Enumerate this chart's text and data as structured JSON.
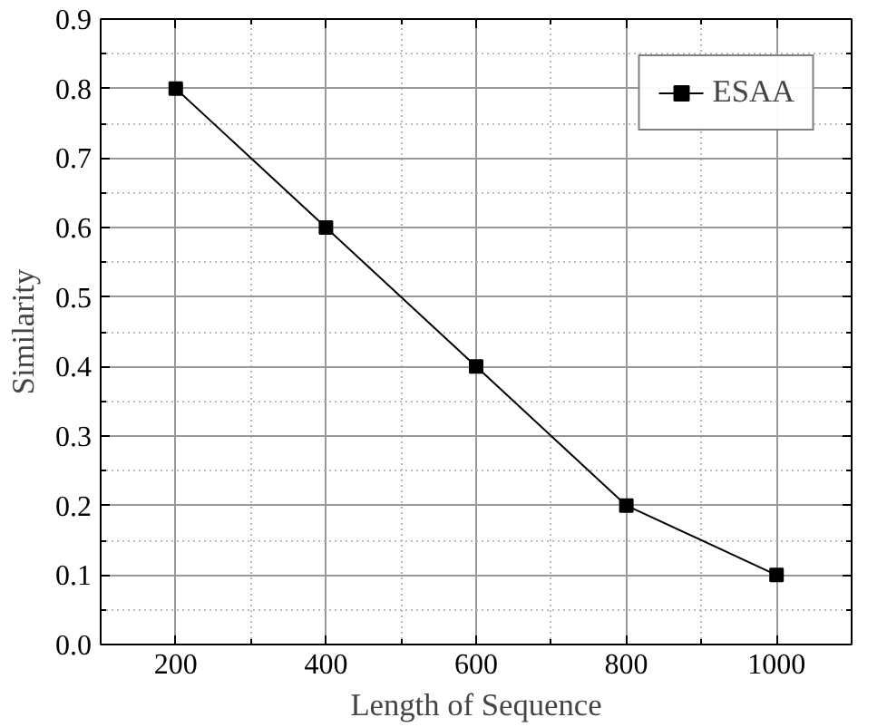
{
  "chart_data": {
    "type": "line",
    "xlabel": "Length of Sequence",
    "ylabel": "Similarity",
    "x": [
      200,
      400,
      600,
      800,
      1000
    ],
    "series": [
      {
        "name": "ESAA",
        "color": "#000000",
        "values": [
          0.8,
          0.6,
          0.4,
          0.2,
          0.1
        ]
      }
    ],
    "xlim": [
      100,
      1100
    ],
    "xticks": [
      200,
      400,
      600,
      800,
      1000
    ],
    "ylim": [
      0,
      0.9
    ],
    "yticks": [
      {
        "value": 0,
        "label": "0.0"
      },
      0.1,
      0.2,
      0.3,
      0.4,
      0.5,
      0.6,
      0.7,
      0.8,
      0.9
    ],
    "grid": true,
    "legend": "top right",
    "marker": "square",
    "line_style": "solid"
  }
}
